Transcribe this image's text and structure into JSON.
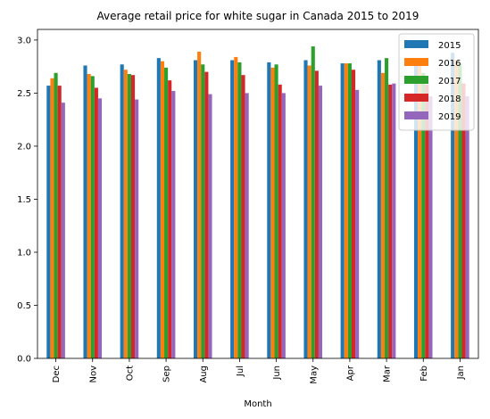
{
  "chart_data": {
    "type": "bar",
    "title": "Average retail price for white sugar in Canada 2015 to 2019",
    "xlabel": "Month",
    "ylabel": "",
    "ylim": [
      0,
      3.1
    ],
    "yticks": [
      "0.0",
      "0.5",
      "1.0",
      "1.5",
      "2.0",
      "2.5",
      "3.0"
    ],
    "categories": [
      "Dec",
      "Nov",
      "Oct",
      "Sep",
      "Aug",
      "Jul",
      "Jun",
      "May",
      "Apr",
      "Mar",
      "Feb",
      "Jan"
    ],
    "legend_position": "top-right",
    "grid": false,
    "series": [
      {
        "name": "2015",
        "color": "#1f77b4",
        "values": [
          2.57,
          2.76,
          2.77,
          2.83,
          2.81,
          2.81,
          2.79,
          2.81,
          2.78,
          2.81,
          2.8,
          2.88
        ]
      },
      {
        "name": "2016",
        "color": "#ff7f0e",
        "values": [
          2.64,
          2.68,
          2.72,
          2.8,
          2.89,
          2.84,
          2.74,
          2.76,
          2.78,
          2.69,
          2.81,
          2.81
        ]
      },
      {
        "name": "2017",
        "color": "#2ca02c",
        "values": [
          2.69,
          2.66,
          2.68,
          2.74,
          2.77,
          2.79,
          2.77,
          2.94,
          2.78,
          2.83,
          2.69,
          2.78
        ]
      },
      {
        "name": "2018",
        "color": "#d62728",
        "values": [
          2.57,
          2.55,
          2.67,
          2.62,
          2.7,
          2.67,
          2.58,
          2.71,
          2.72,
          2.58,
          2.58,
          2.59
        ]
      },
      {
        "name": "2019",
        "color": "#9467bd",
        "values": [
          2.41,
          2.45,
          2.44,
          2.52,
          2.49,
          2.5,
          2.5,
          2.57,
          2.53,
          2.59,
          2.47,
          2.47
        ]
      }
    ]
  }
}
